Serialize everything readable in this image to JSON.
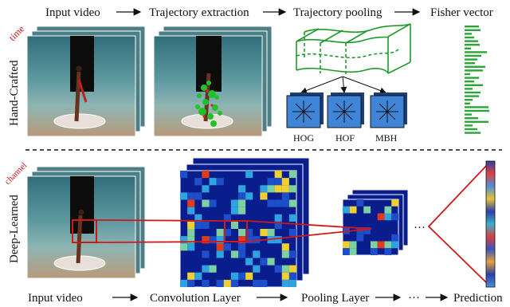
{
  "top": {
    "stages": [
      "Input video",
      "Trajectory extraction",
      "Trajectory pooling",
      "Fisher vector"
    ],
    "row_label": "Hand-Crafted",
    "axis_label": "time",
    "descriptors": [
      "HOG",
      "HOF",
      "MBH"
    ]
  },
  "bottom": {
    "stages": [
      "Input video",
      "Convolution Layer",
      "Pooling Layer",
      "···",
      "Prediction"
    ],
    "row_label": "Deep-Learned",
    "axis_label": "channel",
    "ellipsis": "···"
  },
  "colors": {
    "accent_red": "#d01818",
    "pool_green": "#1f9a2a",
    "descriptor_blue": "#3f86d8",
    "heatmap_bg": "#0a1d8c"
  }
}
